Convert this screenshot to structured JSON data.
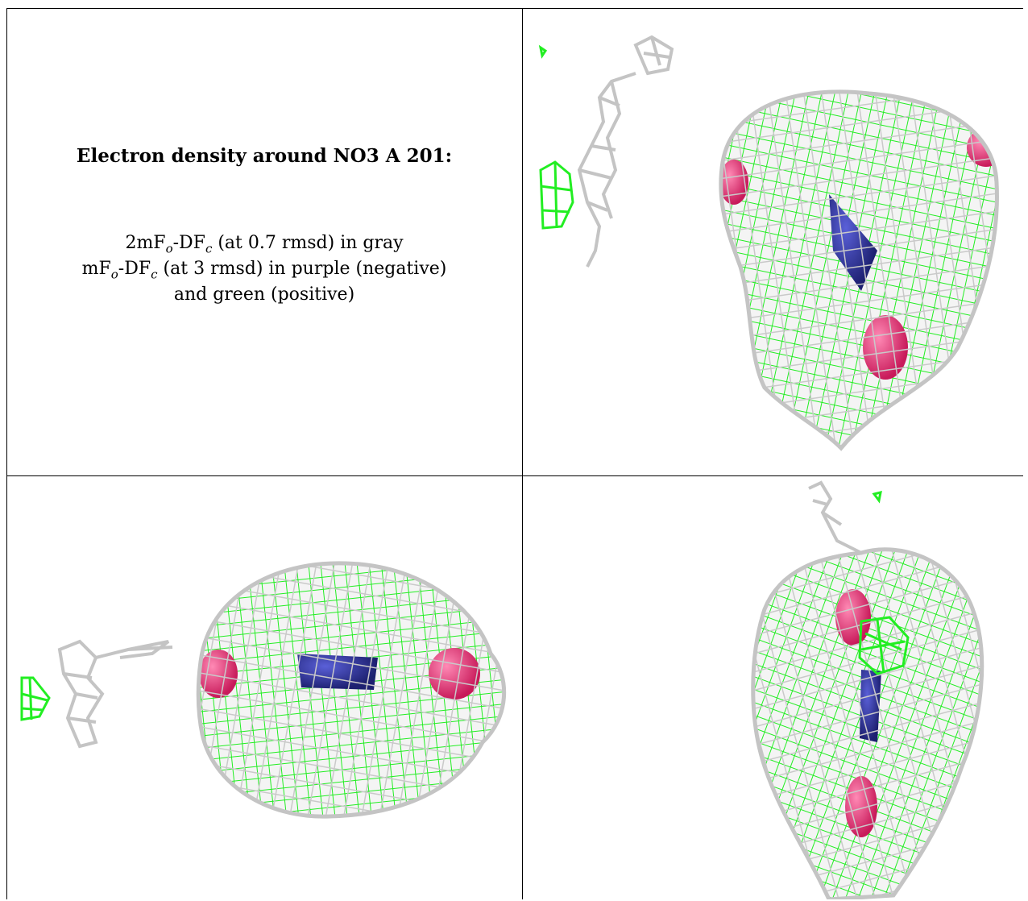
{
  "caption": {
    "title": "Electron density around NO3 A 201:",
    "line1": {
      "prefix": "2mF",
      "sub1": "o",
      "mid": "-DF",
      "sub2": "c",
      "suffix": " (at 0.7 rmsd) in gray"
    },
    "line2": {
      "prefix": "mF",
      "sub1": "o",
      "mid": "-DF",
      "sub2": "c",
      "suffix": " (at 3 rmsd) in purple (negative)"
    },
    "line3": "and green (positive)"
  },
  "colors": {
    "gray_mesh": "#c4c4c4",
    "green_mesh": "#22ee22",
    "oxygen": "#e02a6e",
    "nitrogen": "#2a2fa0",
    "border": "#000000"
  },
  "panels": [
    {
      "name": "view-1",
      "mesh_color": "gray_mesh"
    },
    {
      "name": "view-2",
      "mesh_color": "gray_mesh"
    },
    {
      "name": "view-3",
      "mesh_color": "gray_mesh"
    }
  ]
}
